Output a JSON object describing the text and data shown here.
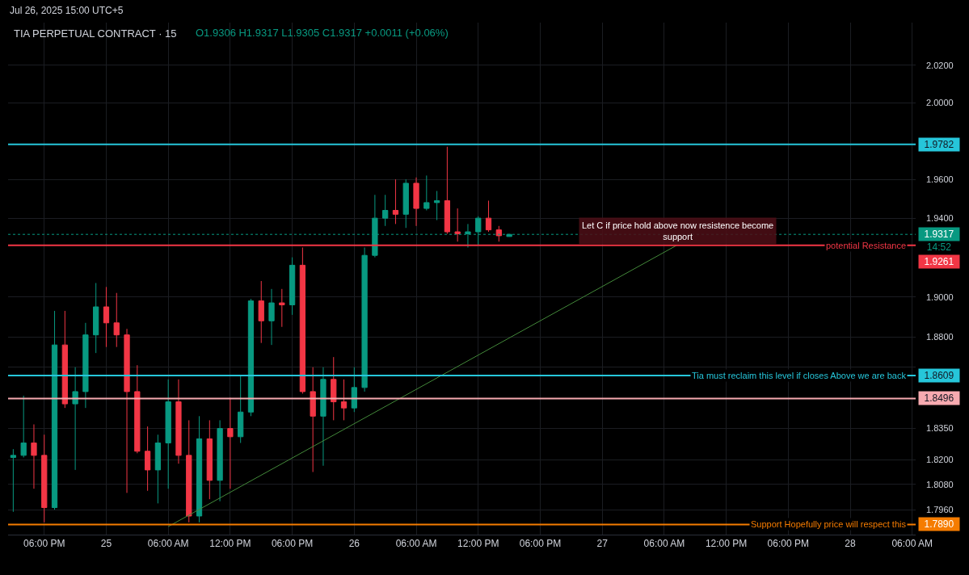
{
  "chart_data": {
    "type": "candlestick",
    "title": "TIA PERPETUAL CONTRACT · 15",
    "subtitle": "O1.9306 H1.9317 L1.9305 C1.9317 +0.0011 (+0.06%)",
    "annotations": [
      "Jul 26, 2025 15:00 UTC+5",
      "Let C if price hold above now resistence become support",
      "14:52",
      "potential Resistance",
      "Tia must reclaim this level if closes Above we are back",
      "Support Hopefully price will respect this"
    ],
    "x": [
      "2025-07-24T15:00",
      "2025-07-24T16:00",
      "2025-07-24T17:00",
      "2025-07-24T18:00",
      "2025-07-24T19:00",
      "2025-07-24T20:00",
      "2025-07-24T21:00",
      "2025-07-24T22:00",
      "2025-07-24T23:00",
      "2025-07-25T00:00",
      "2025-07-25T01:00",
      "2025-07-25T02:00",
      "2025-07-25T03:00",
      "2025-07-25T04:00",
      "2025-07-25T05:00",
      "2025-07-25T06:00",
      "2025-07-25T07:00",
      "2025-07-25T08:00",
      "2025-07-25T09:00",
      "2025-07-25T10:00",
      "2025-07-25T11:00",
      "2025-07-25T12:00",
      "2025-07-25T13:00",
      "2025-07-25T14:00",
      "2025-07-25T15:00",
      "2025-07-25T16:00",
      "2025-07-25T17:00",
      "2025-07-25T18:00",
      "2025-07-25T19:00",
      "2025-07-25T20:00",
      "2025-07-25T21:00",
      "2025-07-25T22:00",
      "2025-07-25T23:00",
      "2025-07-26T00:00",
      "2025-07-26T01:00",
      "2025-07-26T02:00",
      "2025-07-26T03:00",
      "2025-07-26T04:00",
      "2025-07-26T05:00",
      "2025-07-26T06:00",
      "2025-07-26T07:00",
      "2025-07-26T08:00",
      "2025-07-26T09:00",
      "2025-07-26T10:00",
      "2025-07-26T11:00",
      "2025-07-26T12:00",
      "2025-07-26T13:00",
      "2025-07-26T14:00",
      "2025-07-26T15:00"
    ],
    "ohlc": [
      [
        1.821,
        1.825,
        1.795,
        1.822
      ],
      [
        1.822,
        1.851,
        1.821,
        1.828
      ],
      [
        1.828,
        1.837,
        1.806,
        1.822
      ],
      [
        1.822,
        1.832,
        1.79,
        1.797
      ],
      [
        1.797,
        1.893,
        1.796,
        1.876
      ],
      [
        1.876,
        1.893,
        1.845,
        1.847
      ],
      [
        1.847,
        1.865,
        1.815,
        1.853
      ],
      [
        1.853,
        1.887,
        1.845,
        1.881
      ],
      [
        1.881,
        1.907,
        1.872,
        1.895
      ],
      [
        1.895,
        1.905,
        1.875,
        1.887
      ],
      [
        1.887,
        1.902,
        1.875,
        1.881
      ],
      [
        1.881,
        1.884,
        1.804,
        1.853
      ],
      [
        1.853,
        1.866,
        1.823,
        1.824
      ],
      [
        1.824,
        1.836,
        1.805,
        1.815
      ],
      [
        1.815,
        1.832,
        1.799,
        1.828
      ],
      [
        1.828,
        1.859,
        1.806,
        1.848
      ],
      [
        1.848,
        1.859,
        1.818,
        1.822
      ],
      [
        1.822,
        1.839,
        1.79,
        1.793
      ],
      [
        1.793,
        1.841,
        1.79,
        1.83
      ],
      [
        1.83,
        1.839,
        1.801,
        1.81
      ],
      [
        1.81,
        1.839,
        1.8,
        1.835
      ],
      [
        1.835,
        1.85,
        1.806,
        1.831
      ],
      [
        1.831,
        1.861,
        1.828,
        1.843
      ],
      [
        1.843,
        1.899,
        1.841,
        1.898
      ],
      [
        1.898,
        1.908,
        1.877,
        1.888
      ],
      [
        1.888,
        1.904,
        1.876,
        1.897
      ],
      [
        1.897,
        1.904,
        1.885,
        1.896
      ],
      [
        1.896,
        1.92,
        1.891,
        1.916
      ],
      [
        1.916,
        1.925,
        1.852,
        1.853
      ],
      [
        1.853,
        1.865,
        1.814,
        1.841
      ],
      [
        1.841,
        1.865,
        1.817,
        1.859
      ],
      [
        1.859,
        1.87,
        1.839,
        1.848
      ],
      [
        1.848,
        1.859,
        1.839,
        1.845
      ],
      [
        1.845,
        1.865,
        1.843,
        1.855
      ],
      [
        1.855,
        1.925,
        1.853,
        1.921
      ],
      [
        1.921,
        1.952,
        1.92,
        1.94
      ],
      [
        1.94,
        1.952,
        1.936,
        1.944
      ],
      [
        1.944,
        1.96,
        1.937,
        1.942
      ],
      [
        1.942,
        1.96,
        1.935,
        1.958
      ],
      [
        1.958,
        1.961,
        1.936,
        1.945
      ],
      [
        1.945,
        1.962,
        1.944,
        1.948
      ],
      [
        1.948,
        1.954,
        1.939,
        1.949
      ],
      [
        1.949,
        1.977,
        1.932,
        1.933
      ],
      [
        1.933,
        1.945,
        1.928,
        1.932
      ],
      [
        1.932,
        1.937,
        1.925,
        1.933
      ],
      [
        1.933,
        1.941,
        1.926,
        1.94
      ],
      [
        1.94,
        1.949,
        1.933,
        1.934
      ],
      [
        1.934,
        1.936,
        1.928,
        1.931
      ],
      [
        1.9306,
        1.9317,
        1.9305,
        1.9317
      ]
    ],
    "colors": [
      "#089981",
      "#089981",
      "#f23645",
      "#f23645",
      "#089981",
      "#f23645",
      "#089981",
      "#089981",
      "#089981",
      "#f23645",
      "#f23645",
      "#f23645",
      "#f23645",
      "#f23645",
      "#089981",
      "#089981",
      "#f23645",
      "#f23645",
      "#089981",
      "#f23645",
      "#089981",
      "#f23645",
      "#089981",
      "#089981",
      "#f23645",
      "#089981",
      "#f23645",
      "#089981",
      "#f23645",
      "#f23645",
      "#089981",
      "#f23645",
      "#f23645",
      "#089981",
      "#089981",
      "#089981",
      "#089981",
      "#f23645",
      "#089981",
      "#f23645",
      "#089981",
      "#089981",
      "#f23645",
      "#f23645",
      "#089981",
      "#089981",
      "#f23645",
      "#f23645",
      "#089981"
    ],
    "series": [
      {
        "type": "line",
        "x": [
          "2025-07-25T06:00",
          "2025-07-27T07:10"
        ],
        "values": [
          1.788,
          1.926
        ],
        "color": "#43893a"
      }
    ],
    "xlim": [
      "2025-07-24T14:30",
      "2025-07-28T06:20"
    ],
    "xticks": [
      {
        "value": "2025-07-24T18:00",
        "label": "06:00 PM"
      },
      {
        "value": "2025-07-25T00:00",
        "label": "25"
      },
      {
        "value": "2025-07-25T06:00",
        "label": "06:00 AM"
      },
      {
        "value": "2025-07-25T12:00",
        "label": "12:00 PM"
      },
      {
        "value": "2025-07-25T18:00",
        "label": "06:00 PM"
      },
      {
        "value": "2025-07-26T00:00",
        "label": "26"
      },
      {
        "value": "2025-07-26T06:00",
        "label": "06:00 AM"
      },
      {
        "value": "2025-07-26T12:00",
        "label": "12:00 PM"
      },
      {
        "value": "2025-07-26T18:00",
        "label": "06:00 PM"
      },
      {
        "value": "2025-07-27T00:00",
        "label": "27"
      },
      {
        "value": "2025-07-27T06:00",
        "label": "06:00 AM"
      },
      {
        "value": "2025-07-27T12:00",
        "label": "12:00 PM"
      },
      {
        "value": "2025-07-27T18:00",
        "label": "06:00 PM"
      },
      {
        "value": "2025-07-28T00:00",
        "label": "28"
      },
      {
        "value": "2025-07-28T06:00",
        "label": "06:00 AM"
      }
    ],
    "ylim": [
      1.7842,
      2.043
    ],
    "yticks": [
      {
        "value": 2.02,
        "label": "2.0200"
      },
      {
        "value": 2.0,
        "label": "2.0000"
      },
      {
        "value": 1.96,
        "label": "1.9600"
      },
      {
        "value": 1.94,
        "label": "1.9400"
      },
      {
        "value": 1.9,
        "label": "1.9000"
      },
      {
        "value": 1.88,
        "label": "1.8800"
      },
      {
        "value": 1.865,
        "label": null
      },
      {
        "value": 1.835,
        "label": "1.8350"
      },
      {
        "value": 1.82,
        "label": "1.8200"
      },
      {
        "value": 1.808,
        "label": "1.8080"
      },
      {
        "value": 1.796,
        "label": "1.7960"
      }
    ],
    "log": true,
    "grid": true,
    "ref_lines": [
      {
        "axis": "y",
        "value": 1.9782,
        "label": "1.9782",
        "color": "#26c6da"
      },
      {
        "axis": "y",
        "value": 1.9317,
        "label": "1.9317",
        "color": "#089981",
        "line_style": "dotted"
      },
      {
        "axis": "y",
        "value": 1.9261,
        "label": "1.9261",
        "color": "#f23645"
      },
      {
        "axis": "y",
        "value": 1.8609,
        "label": "1.8609",
        "color": "#26c6da"
      },
      {
        "axis": "y",
        "value": 1.8496,
        "label": "1.8496",
        "color": "#f7aab0"
      },
      {
        "axis": "y",
        "value": 1.789,
        "label": "1.7890",
        "color": "#f57c00"
      }
    ]
  }
}
